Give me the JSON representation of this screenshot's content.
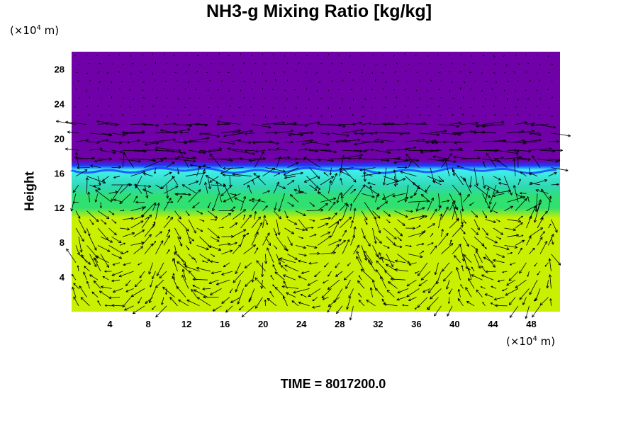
{
  "title": "NH3-g Mixing Ratio [kg/kg]",
  "y_unit": {
    "prefix": "(×10",
    "exp": "4",
    "suffix": " m)"
  },
  "x_unit": {
    "prefix": "(×10",
    "exp": "4",
    "suffix": " m)"
  },
  "ylabel": "Height",
  "time_label": "TIME = 8017200.0",
  "colors": {
    "upper": "#7000a8",
    "interface_blue": "#1a3cff",
    "cyan": "#40f0f0",
    "teal": "#30d8b0",
    "green": "#30e070",
    "yellow_green": "#c8f000",
    "arrow": "#000000"
  },
  "chart_data": {
    "type": "heatmap",
    "title": "NH3-g Mixing Ratio [kg/kg]",
    "xlabel": "",
    "ylabel": "Height",
    "xlim": [
      0,
      51
    ],
    "ylim": [
      0,
      30
    ],
    "x_ticks": [
      4,
      8,
      12,
      16,
      20,
      24,
      28,
      32,
      36,
      40,
      44,
      48
    ],
    "y_ticks": [
      4,
      8,
      12,
      16,
      20,
      24,
      28
    ],
    "layers": [
      {
        "from": 0,
        "to": 12.5,
        "color": "yellow-green",
        "level": "high"
      },
      {
        "from": 12.5,
        "to": 16.5,
        "color": "green-cyan",
        "level": "mid"
      },
      {
        "from": 16.5,
        "to": 30,
        "color": "purple",
        "level": "low"
      }
    ],
    "overlay": "velocity vectors (arrows)"
  }
}
